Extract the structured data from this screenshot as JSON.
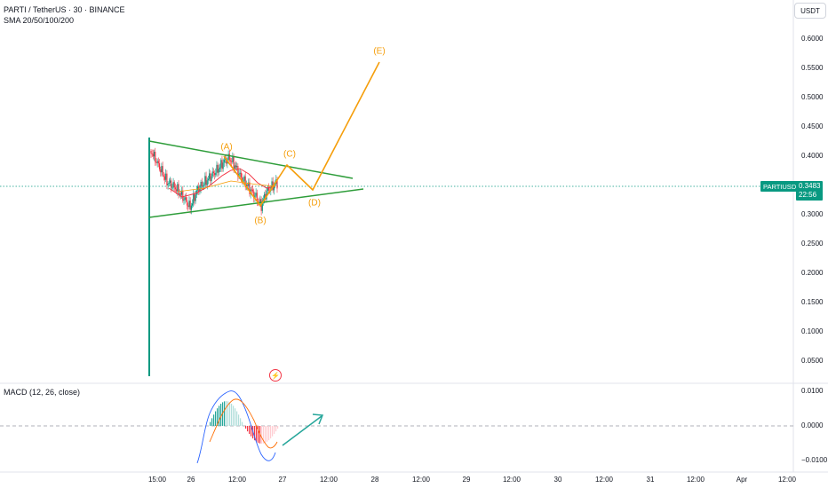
{
  "header": {
    "symbol_title": "PARTI / TetherUS · 30 · BINANCE",
    "indicator": "SMA 20/50/100/200",
    "macd_label": "MACD (12, 26, close)"
  },
  "currency_button": "USDT",
  "price_scale": [
    "0.6000",
    "0.5500",
    "0.5000",
    "0.4500",
    "0.4000",
    "0.3500",
    "0.3000",
    "0.2500",
    "0.2000",
    "0.1500",
    "0.1000",
    "0.0500"
  ],
  "macd_scale": [
    "0.0100",
    "0.0000",
    "−0.0100"
  ],
  "time_axis": [
    "15:00",
    "26",
    "12:00",
    "27",
    "12:00",
    "28",
    "12:00",
    "29",
    "12:00",
    "30",
    "12:00",
    "31",
    "12:00",
    "Apr",
    "12:00"
  ],
  "last_price": {
    "symbol": "PARTIUSDT",
    "price": "0.3483",
    "countdown": "22:56"
  },
  "wave_labels": [
    "(A)",
    "(B)",
    "(C)",
    "(D)",
    "(E)"
  ],
  "colors": {
    "up": "#089981",
    "down": "#f23645",
    "wave": "#f59e0b",
    "trend": "#2e9d3a",
    "macd_line": "#2962ff",
    "signal_line": "#ff6d00"
  },
  "icons": {
    "flash": "lightning-icon"
  }
}
